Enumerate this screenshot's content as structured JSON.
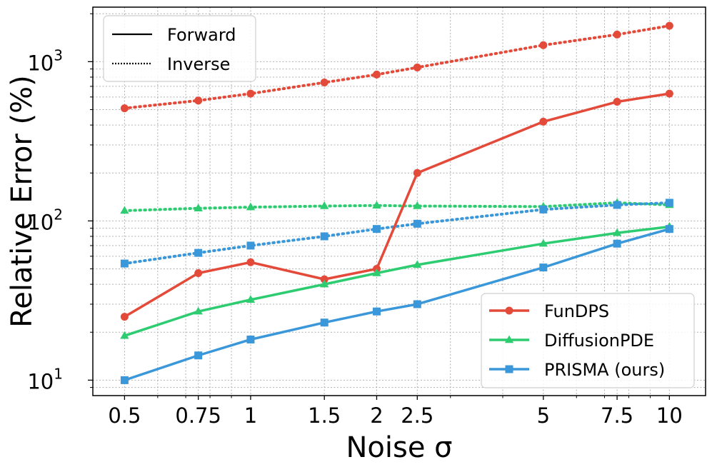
{
  "chart_data": {
    "type": "line",
    "title": "",
    "xlabel": "Noise σ",
    "ylabel": "Relative Error (%)",
    "xscale": "log",
    "yscale": "log",
    "xlim": [
      0.42,
      12.2
    ],
    "ylim": [
      8.0,
      2200
    ],
    "x": [
      0.5,
      0.75,
      1,
      1.5,
      2,
      2.5,
      5,
      7.5,
      10
    ],
    "x_tick_labels": [
      "0.5",
      "0.75",
      "1",
      "1.5",
      "2",
      "2.5",
      "5",
      "7.5",
      "10"
    ],
    "y_ticks": [
      {
        "value": 10,
        "base": "10",
        "exp": "1"
      },
      {
        "value": 100,
        "base": "10",
        "exp": "2"
      },
      {
        "value": 1000,
        "base": "10",
        "exp": "3"
      }
    ],
    "grid": true,
    "series": [
      {
        "name": "FunDPS",
        "mode": "Forward",
        "color": "#e34a3a",
        "marker": "circle",
        "linestyle": "solid",
        "values": [
          25,
          47,
          55,
          43,
          50,
          200,
          420,
          560,
          630
        ]
      },
      {
        "name": "FunDPS",
        "mode": "Inverse",
        "color": "#e34a3a",
        "marker": "circle",
        "linestyle": "dotted",
        "values": [
          510,
          570,
          630,
          740,
          830,
          920,
          1270,
          1480,
          1680
        ]
      },
      {
        "name": "DiffusionPDE",
        "mode": "Forward",
        "color": "#2ecc71",
        "marker": "triangle",
        "linestyle": "solid",
        "values": [
          19,
          27,
          32,
          40,
          47,
          53,
          72,
          84,
          92
        ]
      },
      {
        "name": "DiffusionPDE",
        "mode": "Inverse",
        "color": "#2ecc71",
        "marker": "triangle",
        "linestyle": "dotted",
        "values": [
          116,
          120,
          122,
          124,
          125,
          124,
          123,
          130,
          126
        ]
      },
      {
        "name": "PRISMA (ours)",
        "mode": "Forward",
        "color": "#3a97d9",
        "marker": "square",
        "linestyle": "solid",
        "values": [
          10,
          14.3,
          18,
          23,
          27,
          30,
          51,
          72,
          89
        ]
      },
      {
        "name": "PRISMA (ours)",
        "mode": "Inverse",
        "color": "#3a97d9",
        "marker": "square",
        "linestyle": "dotted",
        "values": [
          54,
          63,
          70,
          80,
          89,
          96,
          118,
          126,
          130
        ]
      }
    ],
    "legend_style": {
      "position": "top-left",
      "entries": [
        {
          "label": "Forward",
          "linestyle": "solid"
        },
        {
          "label": "Inverse",
          "linestyle": "dotted"
        }
      ]
    },
    "legend_methods": {
      "position": "bottom-right",
      "entries": [
        {
          "label": "FunDPS",
          "color": "#e34a3a",
          "marker": "circle"
        },
        {
          "label": "DiffusionPDE",
          "color": "#2ecc71",
          "marker": "triangle"
        },
        {
          "label": "PRISMA (ours)",
          "color": "#3a97d9",
          "marker": "square"
        }
      ]
    }
  }
}
